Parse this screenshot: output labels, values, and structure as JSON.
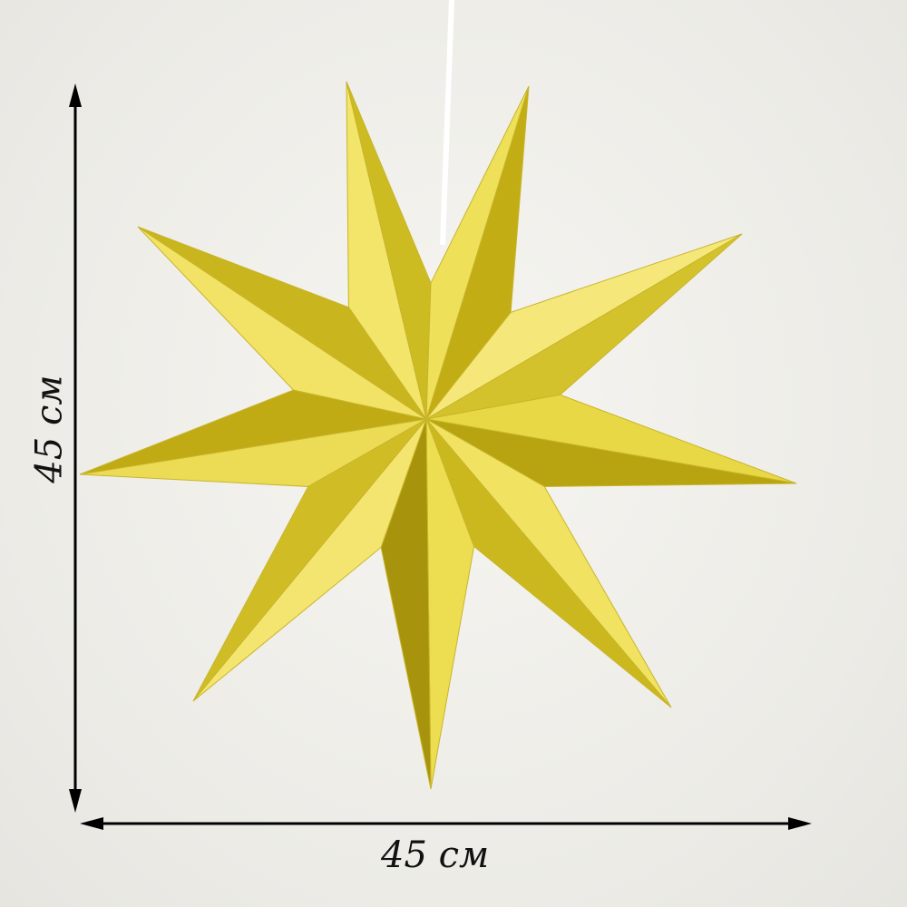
{
  "dimensions": {
    "height_label": "45 см",
    "width_label": "45 см"
  },
  "product": {
    "type": "9-point paper star",
    "color": "#e6d23a"
  }
}
